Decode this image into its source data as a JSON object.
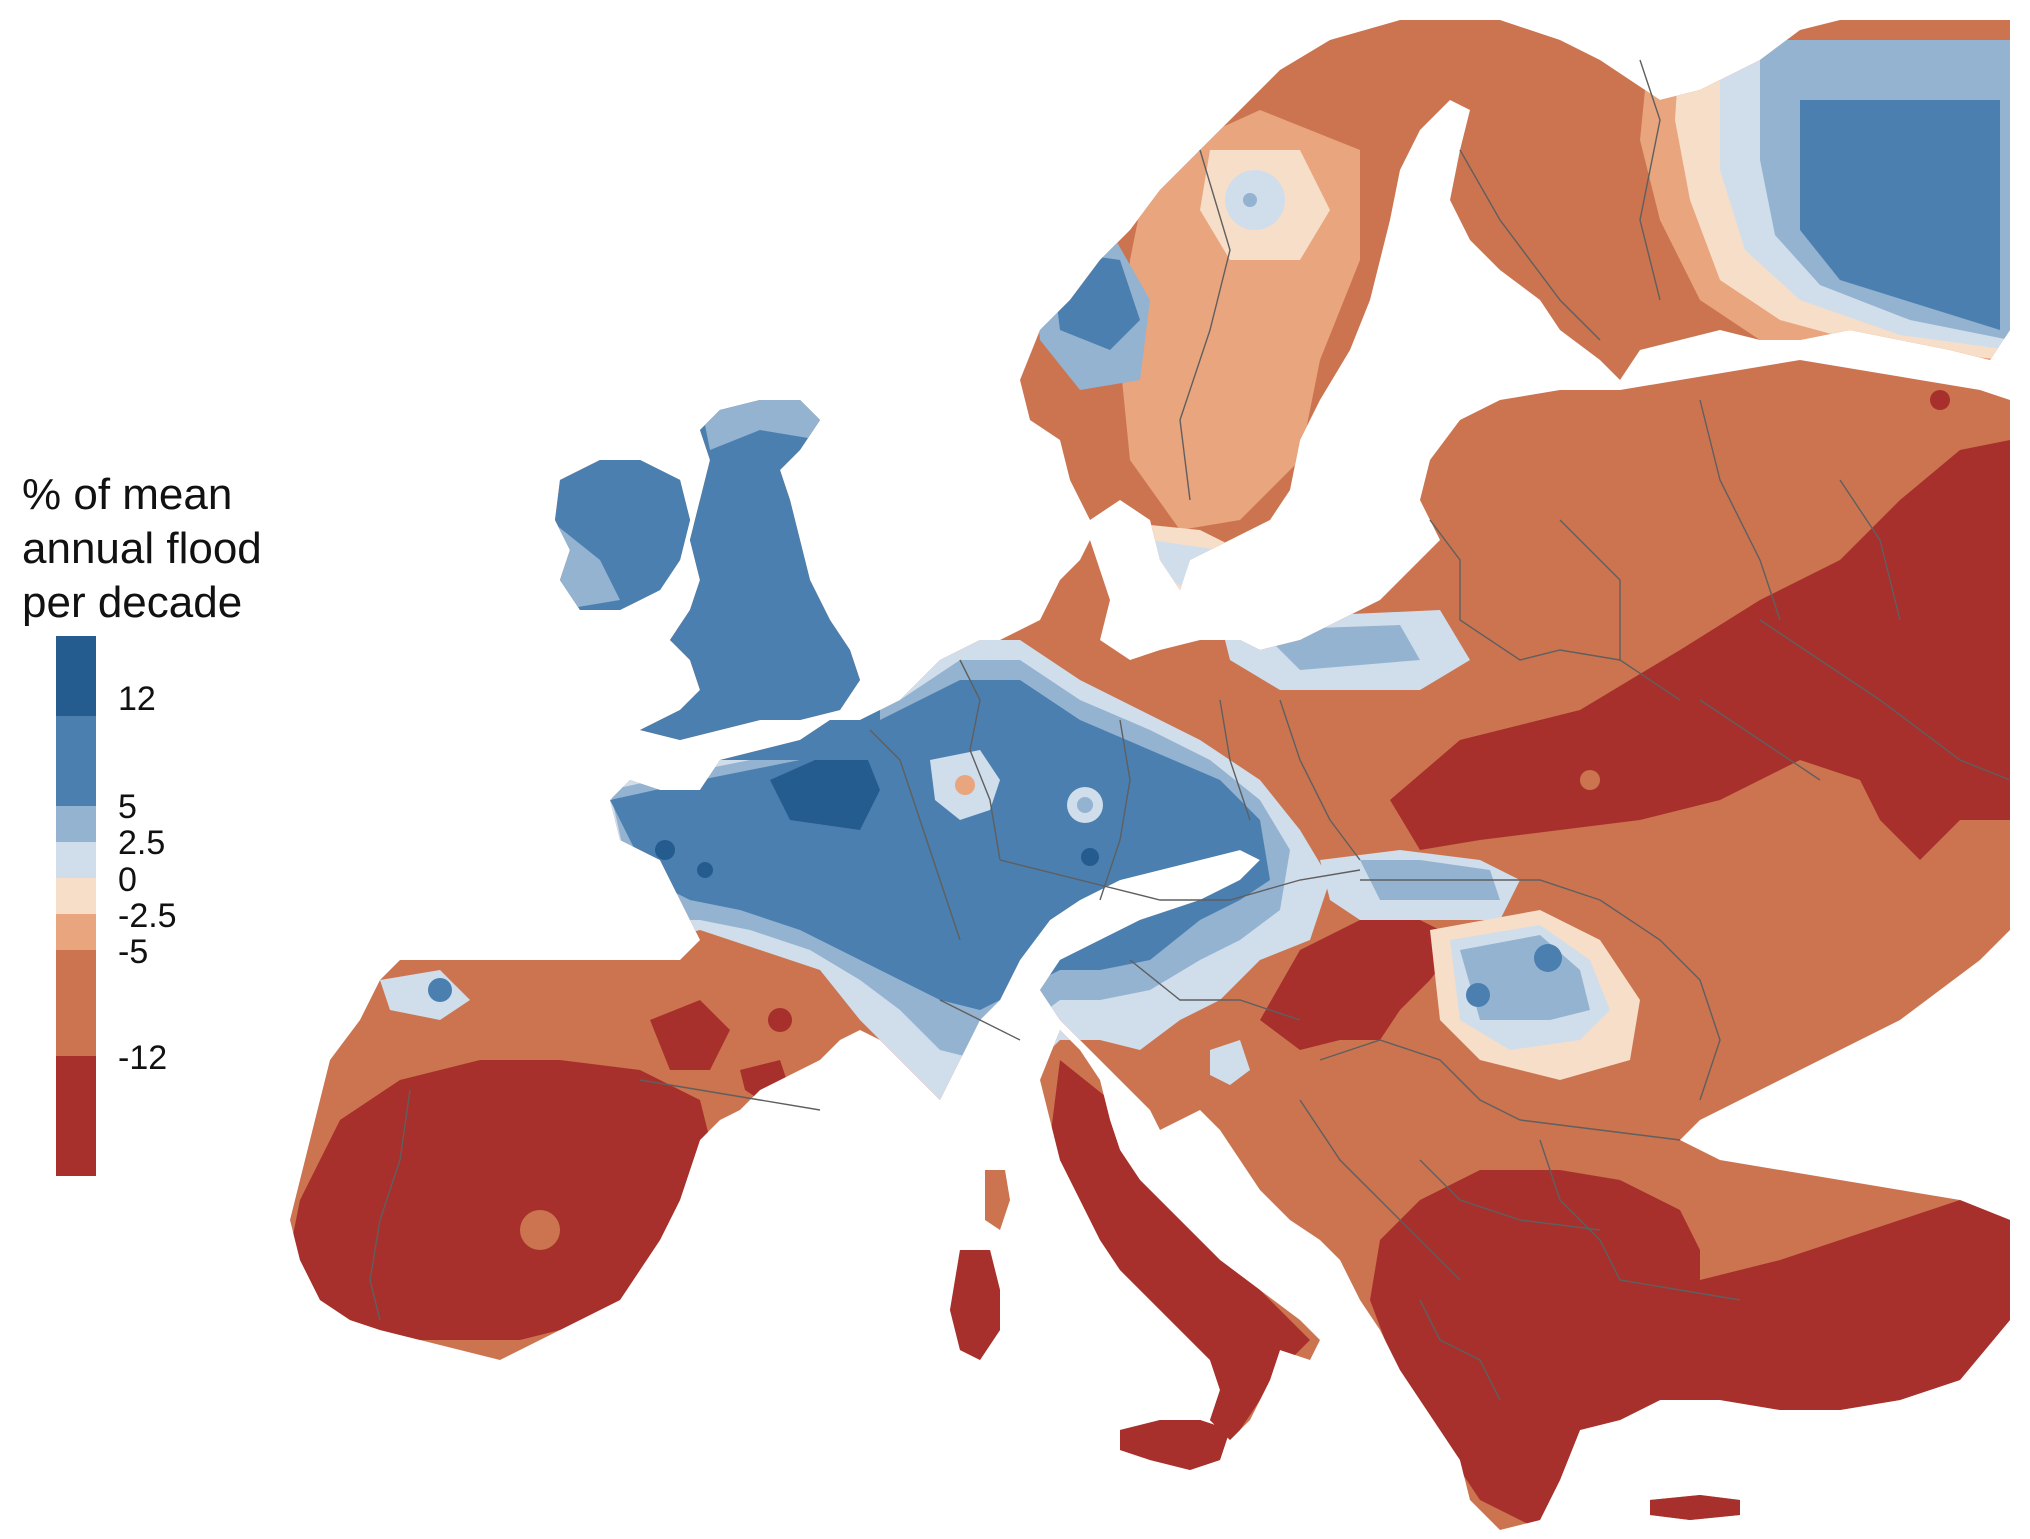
{
  "legend": {
    "title_lines": [
      "% of mean",
      "annual flood",
      "per decade"
    ],
    "ticks": [
      "12",
      "5",
      "2.5",
      "0",
      "-2.5",
      "-5",
      "-12"
    ],
    "classes": [
      {
        "range": "> 12",
        "color": "#245c8f"
      },
      {
        "range": "5 to 12",
        "color": "#4a7fb0"
      },
      {
        "range": "2.5 to 5",
        "color": "#93b3d1"
      },
      {
        "range": "0 to 2.5",
        "color": "#d0deec"
      },
      {
        "range": "-2.5 to 0",
        "color": "#f6dec8"
      },
      {
        "range": "-5 to -2.5",
        "color": "#e8a57e"
      },
      {
        "range": "-12 to -5",
        "color": "#cc7450"
      },
      {
        "range": "< -12",
        "color": "#a7302c"
      }
    ]
  },
  "colors": {
    "background": "#ffffff",
    "borders": "#5f5f5f"
  }
}
